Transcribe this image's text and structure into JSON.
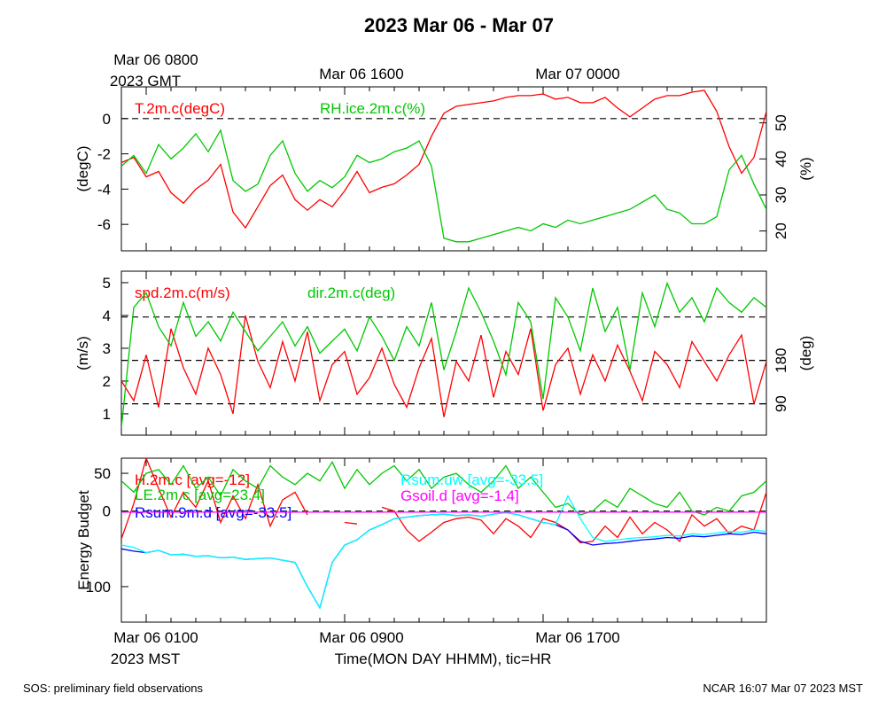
{
  "title": "2023 Mar 06 - Mar 07",
  "top_time_labels": [
    {
      "line1": "Mar 06 0800",
      "line2": "2023 GMT"
    },
    {
      "line1": "Mar 06 1600",
      "line2": ""
    },
    {
      "line1": "Mar 07 0000",
      "line2": ""
    }
  ],
  "bottom_time_labels": [
    {
      "line1": "Mar 06 0100",
      "line2": "2023 MST"
    },
    {
      "line1": "Mar 06 0900",
      "line2": ""
    },
    {
      "line1": "Mar 06 1700",
      "line2": ""
    }
  ],
  "xlabel": "Time(MON DAY HHMM), tic=HR",
  "footer_left": "SOS: preliminary field observations",
  "footer_right": "NCAR 16:07 Mar 07 2023 MST",
  "colors": {
    "red": "#ff0000",
    "green": "#00c800",
    "blue": "#0000ff",
    "cyan": "#00ffff",
    "magenta": "#ff00ff"
  },
  "chart_data": [
    {
      "type": "line",
      "x_range_hours": [
        0.0,
        26.0
      ],
      "ylabel_left": "(degC)",
      "ylabel_right": "(%)",
      "ylim_left": [
        -7.5,
        1.8
      ],
      "ylim_right": [
        14.5,
        60.0
      ],
      "left_ticks": [
        "-6",
        "-4",
        "-2",
        "0"
      ],
      "left_tick_values": [
        -6,
        -4,
        -2,
        0
      ],
      "right_ticks": [
        "20",
        "30",
        "40",
        "50"
      ],
      "right_tick_values": [
        20,
        30,
        40,
        50
      ],
      "ref_lines_left": [
        0
      ],
      "series": [
        {
          "name": "T.2m.c(degC)",
          "axis": "left",
          "color": "#ff0000",
          "x": [
            0,
            0.5,
            1,
            1.5,
            2,
            2.5,
            3,
            3.5,
            4,
            4.5,
            5,
            5.5,
            6,
            6.5,
            7,
            7.5,
            8,
            8.5,
            9,
            9.5,
            10,
            10.5,
            11,
            11.5,
            12,
            12.5,
            13,
            13.5,
            14,
            14.5,
            15,
            15.5,
            16,
            16.5,
            17,
            17.5,
            18,
            18.5,
            19,
            19.5,
            20,
            20.5,
            21,
            21.5,
            22,
            22.5,
            23,
            23.5,
            24,
            24.5,
            25,
            25.5,
            26
          ],
          "y": [
            -2.5,
            -2.2,
            -3.3,
            -3.0,
            -4.2,
            -4.8,
            -4.0,
            -3.5,
            -2.6,
            -5.3,
            -6.2,
            -5.0,
            -3.8,
            -3.2,
            -4.6,
            -5.2,
            -4.6,
            -5.0,
            -4.1,
            -3.0,
            -4.2,
            -3.9,
            -3.7,
            -3.2,
            -2.6,
            -1.0,
            0.3,
            0.7,
            0.8,
            0.9,
            1.0,
            1.2,
            1.3,
            1.3,
            1.4,
            1.1,
            1.2,
            0.9,
            0.9,
            1.2,
            0.6,
            0.1,
            0.6,
            1.1,
            1.3,
            1.3,
            1.5,
            1.6,
            0.4,
            -1.6,
            -3.1,
            -2.2,
            0.4
          ]
        },
        {
          "name": "RH.ice.2m.c(%)",
          "axis": "right",
          "color": "#00c800",
          "x": [
            0,
            0.5,
            1,
            1.5,
            2,
            2.5,
            3,
            3.5,
            4,
            4.5,
            5,
            5.5,
            6,
            6.5,
            7,
            7.5,
            8,
            8.5,
            9,
            9.5,
            10,
            10.5,
            11,
            11.5,
            12,
            12.5,
            13,
            13.5,
            14,
            14.5,
            15,
            15.5,
            16,
            16.5,
            17,
            17.5,
            18,
            18.5,
            19,
            19.5,
            20,
            20.5,
            21,
            21.5,
            22,
            22.5,
            23,
            23.5,
            24,
            24.5,
            25,
            25.5,
            26
          ],
          "y": [
            38,
            41,
            36,
            44,
            40,
            43,
            47,
            42,
            48,
            34,
            31,
            33,
            41,
            45,
            36,
            31,
            34,
            32,
            35,
            41,
            39,
            40,
            42,
            43,
            45,
            38,
            18,
            17,
            17,
            18,
            19,
            20,
            21,
            20,
            22,
            21,
            23,
            22,
            23,
            24,
            25,
            26,
            28,
            30,
            26,
            25,
            22,
            22,
            24,
            37,
            41,
            33,
            26
          ]
        }
      ]
    },
    {
      "type": "line",
      "x_range_hours": [
        0.0,
        26.0
      ],
      "ylabel_left": "(m/s)",
      "ylabel_right": "(deg)",
      "ylim_left": [
        0.35,
        5.35
      ],
      "ylim_right": [
        25.0,
        365.0
      ],
      "left_ticks": [
        "1",
        "2",
        "3",
        "4",
        "5"
      ],
      "left_tick_values": [
        1,
        2,
        3,
        4,
        5
      ],
      "right_ticks": [
        "90",
        "180"
      ],
      "right_tick_values": [
        90,
        180
      ],
      "ref_lines_right": [
        90,
        180,
        270
      ],
      "series": [
        {
          "name": "spd.2m.c(m/s)",
          "axis": "left",
          "color": "#ff0000",
          "x": [
            0,
            0.5,
            1,
            1.5,
            2,
            2.5,
            3,
            3.5,
            4,
            4.5,
            5,
            5.5,
            6,
            6.5,
            7,
            7.5,
            8,
            8.5,
            9,
            9.5,
            10,
            10.5,
            11,
            11.5,
            12,
            12.5,
            13,
            13.5,
            14,
            14.5,
            15,
            15.5,
            16,
            16.5,
            17,
            17.5,
            18,
            18.5,
            19,
            19.5,
            20,
            20.5,
            21,
            21.5,
            22,
            22.5,
            23,
            23.5,
            24,
            24.5,
            25,
            25.5,
            26
          ],
          "y": [
            2.0,
            1.4,
            2.8,
            1.2,
            3.6,
            2.4,
            1.6,
            3.0,
            2.2,
            1.0,
            4.0,
            2.6,
            1.8,
            3.2,
            2.0,
            3.5,
            1.4,
            2.5,
            2.9,
            1.6,
            2.1,
            3.0,
            1.9,
            1.2,
            2.4,
            3.3,
            0.9,
            2.6,
            2.0,
            3.4,
            1.5,
            2.9,
            2.2,
            3.6,
            1.1,
            2.5,
            3.0,
            1.6,
            2.8,
            2.0,
            3.1,
            2.3,
            1.4,
            2.9,
            2.5,
            1.8,
            3.2,
            2.6,
            2.0,
            2.8,
            3.4,
            1.3,
            2.6
          ]
        },
        {
          "name": "dir.2m.c(deg)",
          "axis": "right",
          "color": "#00c800",
          "x": [
            0,
            0.5,
            1,
            1.5,
            2,
            2.5,
            3,
            3.5,
            4,
            4.5,
            5,
            5.5,
            6,
            6.5,
            7,
            7.5,
            8,
            8.5,
            9,
            9.5,
            10,
            10.5,
            11,
            11.5,
            12,
            12.5,
            13,
            13.5,
            14,
            14.5,
            15,
            15.5,
            16,
            16.5,
            17,
            17.5,
            18,
            18.5,
            19,
            19.5,
            20,
            20.5,
            21,
            21.5,
            22,
            22.5,
            23,
            23.5,
            24,
            24.5,
            25,
            25.5,
            26
          ],
          "y": [
            40,
            290,
            320,
            250,
            210,
            300,
            230,
            260,
            220,
            280,
            240,
            200,
            230,
            260,
            210,
            250,
            195,
            220,
            245,
            200,
            270,
            230,
            180,
            250,
            210,
            300,
            160,
            240,
            330,
            280,
            220,
            150,
            300,
            260,
            100,
            310,
            270,
            200,
            330,
            240,
            290,
            160,
            320,
            250,
            340,
            280,
            310,
            260,
            330,
            300,
            280,
            310,
            290
          ]
        }
      ]
    },
    {
      "type": "line",
      "x_range_hours": [
        0.0,
        26.0
      ],
      "ylabel_left": "Energy Budget",
      "ylim_left": [
        -147.0,
        70.0
      ],
      "left_ticks": [
        "-100",
        "0",
        "50"
      ],
      "left_tick_values": [
        -100,
        0,
        50
      ],
      "ref_lines_left": [
        0
      ],
      "series": [
        {
          "name": "H.2m.c",
          "label": "H.2m.c [avg=-12]",
          "color": "#ff0000",
          "x": [
            0,
            0.5,
            1,
            1.5,
            2,
            2.5,
            3,
            3.5,
            4,
            4.5,
            5,
            5.5,
            6,
            6.5,
            7,
            7.5,
            null,
            9.0,
            9.5,
            null,
            10.5,
            11,
            11.5,
            12,
            12.5,
            13,
            13.5,
            14,
            14.5,
            15,
            15.5,
            16,
            16.5,
            17,
            17.5,
            18,
            18.5,
            19,
            19.5,
            20,
            20.5,
            21,
            21.5,
            22,
            22.5,
            23,
            23.5,
            24,
            24.5,
            25,
            25.5,
            26
          ],
          "y": [
            -37,
            10,
            70,
            30,
            -8,
            25,
            5,
            40,
            -15,
            20,
            -10,
            35,
            -20,
            15,
            25,
            -5,
            null,
            -15,
            -17,
            null,
            5,
            0,
            -25,
            -40,
            -28,
            -15,
            -10,
            -8,
            -12,
            -30,
            -10,
            -20,
            -35,
            -10,
            -15,
            -25,
            -42,
            -40,
            -20,
            -35,
            -8,
            -30,
            -15,
            -25,
            -40,
            -5,
            -20,
            -10,
            -30,
            -20,
            -25,
            25
          ]
        },
        {
          "name": "LE.2m.c",
          "label": "LE.2m.c [avg=23.4]",
          "color": "#00c800",
          "x": [
            0,
            0.5,
            1,
            1.5,
            2,
            2.5,
            3,
            3.5,
            4,
            4.5,
            5,
            5.5,
            6,
            6.5,
            7,
            7.5,
            8,
            8.5,
            9,
            9.5,
            10,
            10.5,
            11,
            11.5,
            12,
            12.5,
            13,
            13.5,
            14,
            14.5,
            15,
            15.5,
            16,
            16.5,
            17,
            17.5,
            18,
            18.5,
            19,
            19.5,
            20,
            20.5,
            21,
            21.5,
            22,
            22.5,
            23,
            23.5,
            24,
            24.5,
            25,
            25.5,
            26
          ],
          "y": [
            40,
            25,
            50,
            55,
            35,
            60,
            30,
            45,
            20,
            55,
            40,
            30,
            60,
            45,
            35,
            50,
            40,
            65,
            30,
            55,
            35,
            50,
            60,
            40,
            55,
            30,
            45,
            50,
            35,
            25,
            40,
            60,
            30,
            45,
            25,
            5,
            10,
            -5,
            0,
            15,
            5,
            30,
            20,
            10,
            5,
            25,
            0,
            -5,
            5,
            0,
            20,
            25,
            40
          ]
        },
        {
          "name": "Rsum.9m.d",
          "label": "Rsum.9m.d [avg=-33.5]",
          "color": "#0000ff",
          "x": [
            0,
            0.5,
            1,
            1.5,
            2,
            2.5,
            3,
            3.5,
            4,
            4.5,
            5,
            5.5,
            6,
            6.5,
            7,
            7.5,
            8,
            8.5,
            9,
            9.5,
            10,
            10.5,
            11,
            11.5,
            12,
            12.5,
            13,
            13.5,
            14,
            14.5,
            15,
            15.5,
            16,
            16.5,
            17,
            17.5,
            18,
            18.5,
            19,
            19.5,
            20,
            20.5,
            21,
            21.5,
            22,
            22.5,
            23,
            23.5,
            24,
            24.5,
            25,
            25.5,
            26
          ],
          "y": [
            -50,
            -53,
            -55,
            -52,
            -58,
            -57,
            -60,
            -59,
            -62,
            -61,
            -64,
            -63,
            -62,
            -65,
            -68,
            -100,
            -128,
            -68,
            -45,
            -38,
            -25,
            -18,
            -10,
            -8,
            -6,
            -5,
            -4,
            -6,
            -5,
            -7,
            -4,
            -2,
            -5,
            -10,
            -15,
            -18,
            -25,
            -40,
            -45,
            -43,
            -42,
            -40,
            -38,
            -37,
            -35,
            -36,
            -33,
            -34,
            -32,
            -30,
            -31,
            -28,
            -30
          ]
        },
        {
          "name": "Rsum.uw",
          "label": "Rsum.uw [avg=-33.5]",
          "color": "#00ffff",
          "x": [
            0,
            0.5,
            1,
            1.5,
            2,
            2.5,
            3,
            3.5,
            4,
            4.5,
            5,
            5.5,
            6,
            6.5,
            7,
            7.5,
            8,
            8.5,
            9,
            9.5,
            10,
            10.5,
            11,
            11.5,
            12,
            12.5,
            13,
            13.5,
            14,
            14.5,
            15,
            15.5,
            16,
            16.5,
            17,
            17.5,
            18,
            18.5,
            19,
            19.5,
            20,
            20.5,
            21,
            21.5,
            22,
            22.5,
            23,
            23.5,
            24,
            24.5,
            25,
            25.5,
            26
          ],
          "y": [
            -45,
            -48,
            -55,
            -52,
            -58,
            -57,
            -60,
            -59,
            -62,
            -61,
            -64,
            -63,
            -62,
            -65,
            -68,
            -100,
            -128,
            -68,
            -45,
            -38,
            -25,
            -18,
            -10,
            -8,
            -6,
            -5,
            -4,
            -6,
            -5,
            -7,
            -4,
            -2,
            -5,
            -10,
            -15,
            -18,
            20,
            -10,
            -35,
            -40,
            -38,
            -36,
            -35,
            -34,
            -32,
            -33,
            -30,
            -31,
            -29,
            -27,
            -28,
            -25,
            -27
          ]
        },
        {
          "name": "Gsoil.d",
          "label": "Gsoil.d [avg=-1.4]",
          "color": "#ff00ff",
          "x": [
            0,
            26
          ],
          "y": [
            -1.4,
            -1.4
          ]
        }
      ]
    }
  ]
}
